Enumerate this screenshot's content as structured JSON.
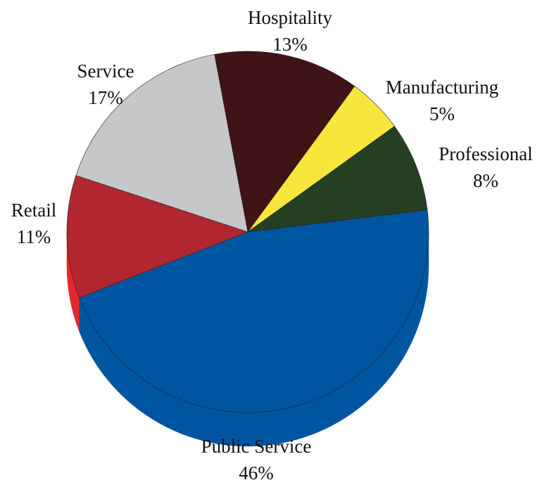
{
  "chart_data": {
    "type": "pie",
    "title": "",
    "slices": [
      {
        "label": "Professional",
        "value": 8,
        "display": "8%",
        "color": "#243f21"
      },
      {
        "label": "Manufacturing",
        "value": 5,
        "display": "5%",
        "color": "#f7e73c"
      },
      {
        "label": "Hospitality",
        "value": 13,
        "display": "13%",
        "color": "#401316"
      },
      {
        "label": "Service",
        "value": 17,
        "display": "17%",
        "color": "#c6c7c9"
      },
      {
        "label": "Retail",
        "value": 11,
        "display": "11%",
        "color": "#b22630"
      },
      {
        "label": "Public Service",
        "value": 46,
        "display": "46%",
        "color": "#0055a0"
      }
    ],
    "side_colors": {
      "Retail": "#e8262c",
      "Public Service": "#0055a0"
    },
    "legend": "none",
    "style": "3d-tilted"
  }
}
